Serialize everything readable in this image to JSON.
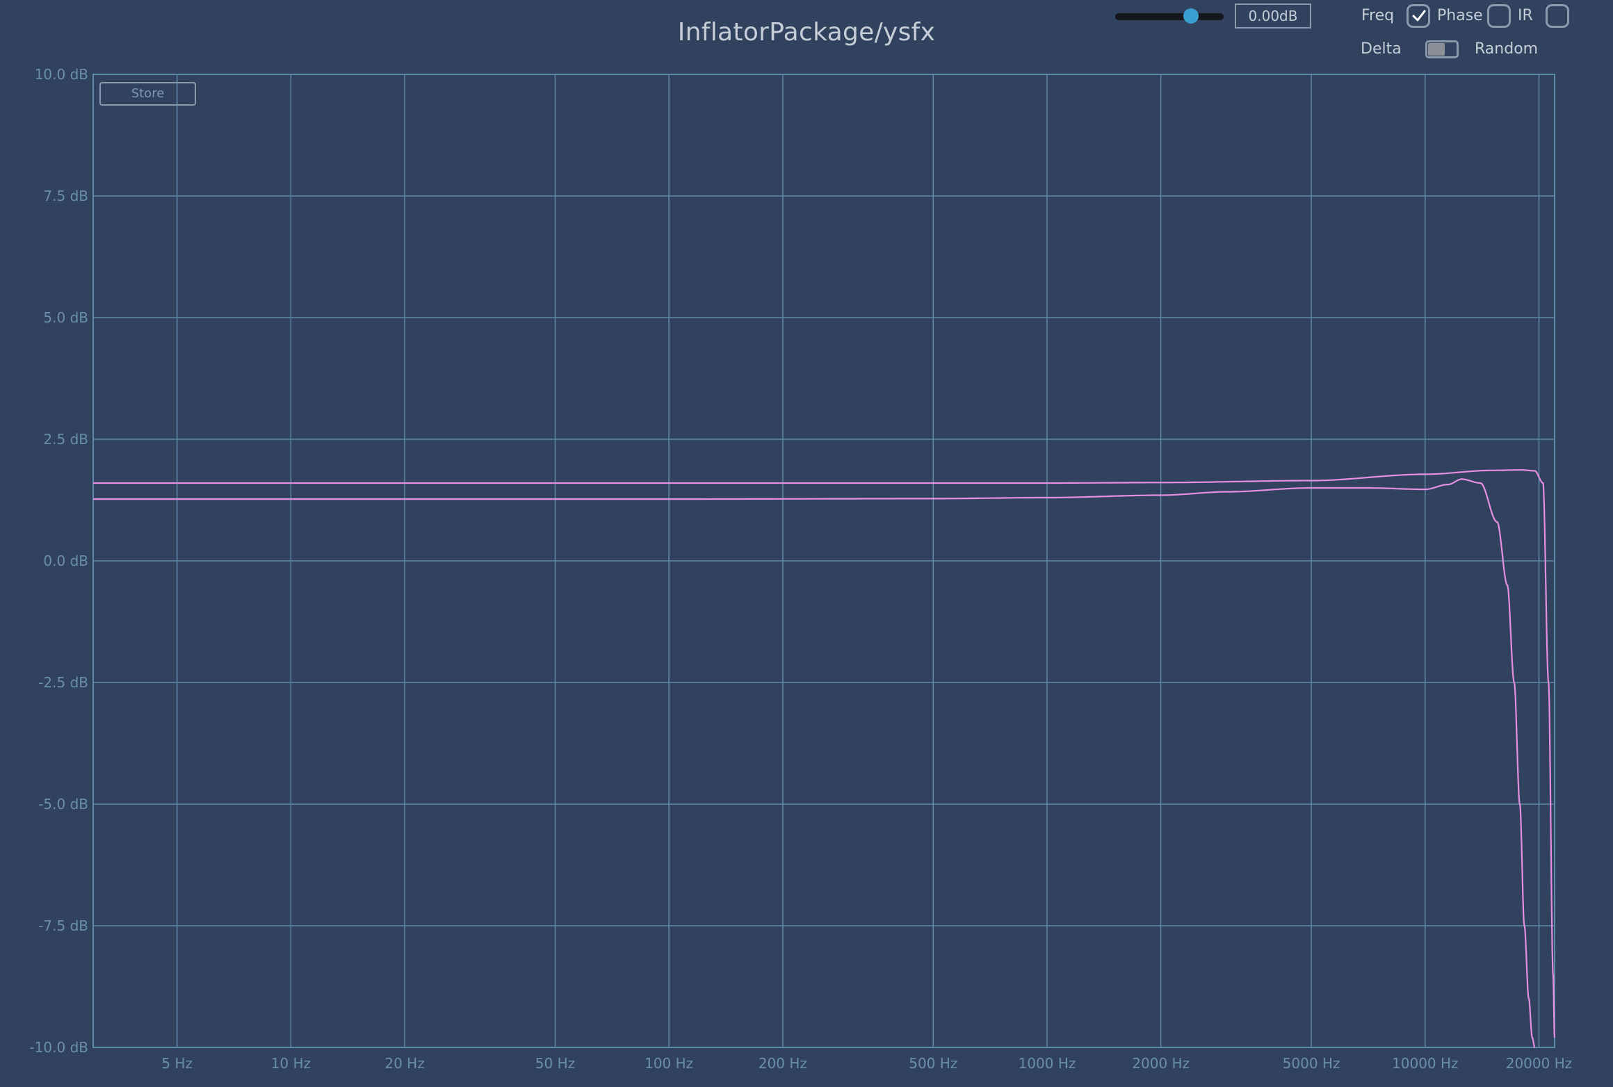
{
  "title": "InflatorPackage/ysfx",
  "gain": {
    "value_text": "0.00dB",
    "slider_fraction": 0.7
  },
  "controls": {
    "freq_label": "Freq",
    "freq_checked": true,
    "phase_label": "Phase",
    "phase_checked": false,
    "ir_label": "IR",
    "ir_checked": false,
    "delta_label": "Delta",
    "random_label": "Random",
    "delta_random_on": false
  },
  "store_label": "Store",
  "colors": {
    "background": "#31425e",
    "grid": "#5f89a8",
    "curve": "#e58fe0",
    "accent": "#3a9fd0"
  },
  "chart_data": {
    "type": "line",
    "x_scale": "log",
    "xlim": [
      3,
      22000
    ],
    "ylim": [
      -10,
      10
    ],
    "grid": true,
    "x_ticks": [
      5,
      10,
      20,
      50,
      100,
      200,
      500,
      1000,
      2000,
      5000,
      10000,
      20000
    ],
    "x_tick_labels": [
      "5 Hz",
      "10 Hz",
      "20 Hz",
      "50 Hz",
      "100 Hz",
      "200 Hz",
      "500 Hz",
      "1000 Hz",
      "2000 Hz",
      "5000 Hz",
      "10000 Hz",
      "20000 Hz"
    ],
    "y_ticks": [
      10,
      7.5,
      5,
      2.5,
      0,
      -2.5,
      -5,
      -7.5,
      -10
    ],
    "y_tick_labels": [
      "10.0 dB",
      "7.5 dB",
      "5.0 dB",
      "2.5 dB",
      "0.0 dB",
      "-2.5 dB",
      "-5.0 dB",
      "-7.5 dB",
      "-10.0 dB"
    ],
    "series": [
      {
        "x": [
          3,
          100,
          1000,
          2000,
          5000,
          10000,
          15000,
          18000,
          19500,
          20500,
          21200,
          21800,
          22000
        ],
        "y": [
          1.6,
          1.6,
          1.6,
          1.61,
          1.65,
          1.78,
          1.86,
          1.87,
          1.85,
          1.6,
          -2.5,
          -8.5,
          -9.8
        ]
      },
      {
        "x": [
          3,
          100,
          500,
          1000,
          2000,
          3000,
          5000,
          7000,
          10000,
          11500,
          12500,
          14000,
          15500,
          16500,
          17200,
          17800,
          18300,
          18800,
          19200,
          19500
        ],
        "y": [
          1.27,
          1.27,
          1.28,
          1.3,
          1.35,
          1.42,
          1.5,
          1.5,
          1.47,
          1.57,
          1.68,
          1.6,
          0.8,
          -0.5,
          -2.5,
          -5,
          -7.5,
          -9,
          -9.8,
          -10
        ]
      }
    ]
  }
}
